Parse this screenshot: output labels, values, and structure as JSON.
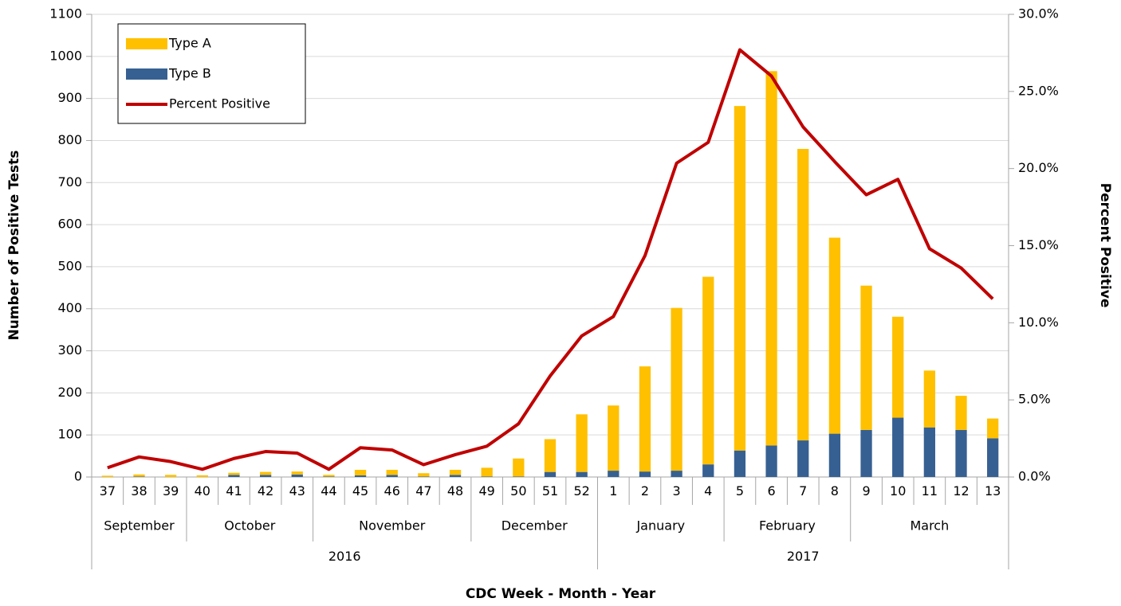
{
  "chart_data": {
    "type": "combo",
    "stacked": true,
    "x_title": "CDC Week - Month - Year",
    "y_title": "Number of Positive Tests",
    "y2_title": "Percent Positive",
    "categories": [
      "37",
      "38",
      "39",
      "40",
      "41",
      "42",
      "43",
      "44",
      "45",
      "46",
      "47",
      "48",
      "49",
      "50",
      "51",
      "52",
      "1",
      "2",
      "3",
      "4",
      "5",
      "6",
      "7",
      "8",
      "9",
      "10",
      "11",
      "12",
      "13"
    ],
    "category_groups": [
      {
        "label": "September",
        "size": 3
      },
      {
        "label": "October",
        "size": 4
      },
      {
        "label": "November",
        "size": 5
      },
      {
        "label": "December",
        "size": 4
      },
      {
        "label": "January",
        "size": 4
      },
      {
        "label": "February",
        "size": 4
      },
      {
        "label": "March",
        "size": 5
      }
    ],
    "year_groups": [
      {
        "label": "2016",
        "size": 16
      },
      {
        "label": "2017",
        "size": 13
      }
    ],
    "series": [
      {
        "name": "Type A",
        "type": "bar",
        "color": "#FFC000",
        "values": [
          3,
          5,
          5,
          4,
          5,
          7,
          7,
          4,
          13,
          12,
          8,
          12,
          21,
          43,
          78,
          137,
          155,
          250,
          387,
          446,
          819,
          890,
          693,
          466,
          343,
          240,
          135,
          81,
          47
        ]
      },
      {
        "name": "Type B",
        "type": "bar",
        "color": "#376092",
        "values": [
          0,
          1,
          0,
          0,
          5,
          5,
          6,
          1,
          4,
          5,
          1,
          5,
          1,
          1,
          12,
          12,
          15,
          13,
          15,
          30,
          63,
          75,
          87,
          103,
          112,
          141,
          118,
          112,
          92
        ]
      },
      {
        "name": "Percent Positive",
        "type": "line",
        "axis": "y2",
        "color": "#C00000",
        "values": [
          0.6,
          1.3,
          1.0,
          0.5,
          1.2,
          1.65,
          1.55,
          0.5,
          1.9,
          1.75,
          0.8,
          1.45,
          2.0,
          3.45,
          6.55,
          9.15,
          10.4,
          14.35,
          20.35,
          21.7,
          27.7,
          26.0,
          22.7,
          20.45,
          18.3,
          19.3,
          14.8,
          13.55,
          11.55
        ]
      }
    ],
    "ylim": [
      0,
      1100
    ],
    "yticks": [
      0,
      100,
      200,
      300,
      400,
      500,
      600,
      700,
      800,
      900,
      1000,
      1100
    ],
    "y2lim": [
      0,
      30
    ],
    "y2ticks": [
      {
        "value": 0,
        "label": "0.0%"
      },
      {
        "value": 5,
        "label": "5.0%"
      },
      {
        "value": 10,
        "label": "10.0%"
      },
      {
        "value": 15,
        "label": "15.0%"
      },
      {
        "value": 20,
        "label": "20.0%"
      },
      {
        "value": 25,
        "label": "25.0%"
      },
      {
        "value": 30,
        "label": "30.0%"
      }
    ],
    "grid": true,
    "legend": "upper left"
  }
}
